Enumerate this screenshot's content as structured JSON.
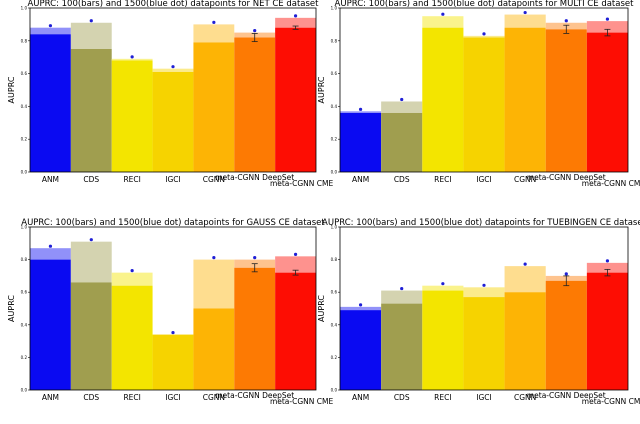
{
  "chart_data": [
    {
      "type": "bar",
      "title": "AUPRC: 100(bars) and 1500(blue dot) datapoints for NET CE dataset",
      "ylabel": "AUPRC",
      "ylim": [
        0,
        1
      ],
      "yticks": [
        "0.0",
        "0.2",
        "0.4",
        "0.6",
        "0.8",
        "1.0"
      ],
      "categories": [
        "ANM",
        "CDS",
        "RECI",
        "IGCI",
        "CGNN",
        "meta-CGNN DeepSet",
        "meta-CGNN CME"
      ],
      "colors": [
        "#0a0af2",
        "#a09e4f",
        "#f3e500",
        "#f6d300",
        "#fdb405",
        "#fd7a03",
        "#fd0d03"
      ],
      "series": [
        {
          "name": "100",
          "values": [
            0.84,
            0.75,
            0.68,
            0.61,
            0.79,
            0.82,
            0.88
          ]
        },
        {
          "name": "1500",
          "values": [
            0.88,
            0.91,
            0.69,
            0.63,
            0.9,
            0.85,
            0.94
          ]
        }
      ],
      "error": [
        0,
        0,
        0,
        0,
        0,
        0.025,
        0.01
      ]
    },
    {
      "type": "bar",
      "title": "AUPRC: 100(bars) and 1500(blue dot) datapoints for MULTI CE dataset",
      "ylabel": "AUPRC",
      "ylim": [
        0,
        1
      ],
      "yticks": [
        "0.0",
        "0.2",
        "0.4",
        "0.6",
        "0.8",
        "1.0"
      ],
      "categories": [
        "ANM",
        "CDS",
        "RECI",
        "IGCI",
        "CGNN",
        "meta-CGNN DeepSet",
        "meta-CGNN CME"
      ],
      "colors": [
        "#0a0af2",
        "#a09e4f",
        "#f3e500",
        "#f6d300",
        "#fdb405",
        "#fd7a03",
        "#fd0d03"
      ],
      "series": [
        {
          "name": "100",
          "values": [
            0.36,
            0.36,
            0.88,
            0.82,
            0.88,
            0.87,
            0.85
          ]
        },
        {
          "name": "1500",
          "values": [
            0.37,
            0.43,
            0.95,
            0.83,
            0.96,
            0.91,
            0.92
          ]
        }
      ],
      "error": [
        0,
        0,
        0,
        0,
        0,
        0.025,
        0.02
      ]
    },
    {
      "type": "bar",
      "title": "AUPRC: 100(bars) and 1500(blue dot) datapoints for GAUSS CE dataset",
      "ylabel": "AUPRC",
      "ylim": [
        0,
        1
      ],
      "yticks": [
        "0.0",
        "0.2",
        "0.4",
        "0.6",
        "0.8",
        "1.0"
      ],
      "categories": [
        "ANM",
        "CDS",
        "RECI",
        "IGCI",
        "CGNN",
        "meta-CGNN DeepSet",
        "meta-CGNN CME"
      ],
      "colors": [
        "#0a0af2",
        "#a09e4f",
        "#f3e500",
        "#f6d300",
        "#fdb405",
        "#fd7a03",
        "#fd0d03"
      ],
      "series": [
        {
          "name": "100",
          "values": [
            0.8,
            0.66,
            0.64,
            0.34,
            0.5,
            0.75,
            0.72
          ]
        },
        {
          "name": "1500",
          "values": [
            0.87,
            0.91,
            0.72,
            0.34,
            0.8,
            0.8,
            0.82
          ]
        }
      ],
      "error": [
        0,
        0,
        0,
        0,
        0,
        0.025,
        0.015
      ]
    },
    {
      "type": "bar",
      "title": "AUPRC: 100(bars) and 1500(blue dot) datapoints for TUEBINGEN CE dataset",
      "ylabel": "AUPRC",
      "ylim": [
        0,
        1
      ],
      "yticks": [
        "0.0",
        "0.2",
        "0.4",
        "0.6",
        "0.8",
        "1.0"
      ],
      "categories": [
        "ANM",
        "CDS",
        "RECI",
        "IGCI",
        "CGNN",
        "meta-CGNN DeepSet",
        "meta-CGNN CME"
      ],
      "colors": [
        "#0a0af2",
        "#a09e4f",
        "#f3e500",
        "#f6d300",
        "#fdb405",
        "#fd7a03",
        "#fd0d03"
      ],
      "series": [
        {
          "name": "100",
          "values": [
            0.49,
            0.53,
            0.61,
            0.57,
            0.6,
            0.67,
            0.72
          ]
        },
        {
          "name": "1500",
          "values": [
            0.51,
            0.61,
            0.64,
            0.63,
            0.76,
            0.7,
            0.78
          ]
        }
      ],
      "error": [
        0,
        0,
        0,
        0,
        0,
        0.03,
        0.02
      ]
    }
  ]
}
